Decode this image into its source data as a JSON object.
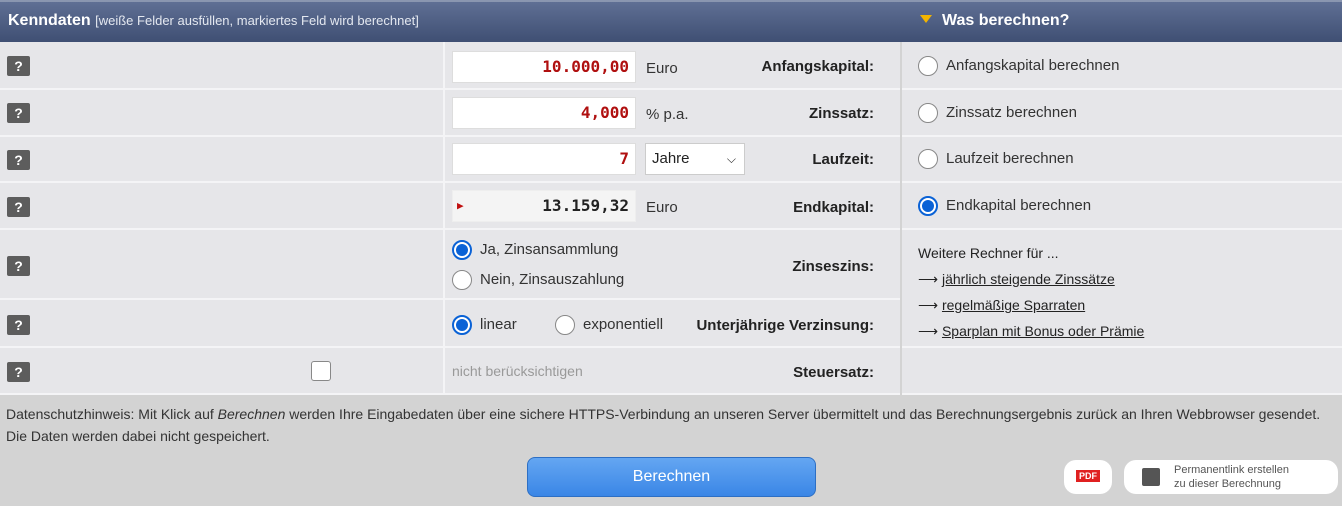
{
  "header": {
    "title": "Kenndaten",
    "subtitle": "[weiße Felder ausfüllen, markiertes Feld wird berechnet]",
    "right_title": "Was berechnen?"
  },
  "help_label": "?",
  "fields": {
    "anfangskapital": {
      "label": "Anfangskapital:",
      "value": "10.000,00",
      "unit": "Euro"
    },
    "zinssatz": {
      "label": "Zinssatz:",
      "value": "4,000",
      "unit": "% p.a."
    },
    "laufzeit": {
      "label": "Laufzeit:",
      "value": "7",
      "unit_select": "Jahre"
    },
    "endkapital": {
      "label": "Endkapital:",
      "value": "13.159,32",
      "unit": "Euro"
    },
    "zinseszins": {
      "label": "Zinseszins:",
      "options": [
        "Ja, Zinsansammlung",
        "Nein, Zinsauszahlung"
      ],
      "selected": 0
    },
    "verzinsung": {
      "label": "Unterjährige Verzinsung:",
      "options": [
        "linear",
        "exponentiell"
      ],
      "selected": 0
    },
    "steuersatz": {
      "label": "Steuersatz:",
      "checked": false,
      "value": "nicht berücksichtigen"
    }
  },
  "calc_options": {
    "items": [
      "Anfangskapital berechnen",
      "Zinssatz berechnen",
      "Laufzeit berechnen",
      "Endkapital berechnen"
    ],
    "selected": 3
  },
  "more": {
    "title": "Weitere Rechner für ...",
    "links": [
      "jährlich steigende Zinssätze",
      "regelmäßige Sparraten",
      "Sparplan mit Bonus oder Prämie"
    ]
  },
  "privacy": {
    "prefix": "Datenschutzhinweis: Mit Klick auf ",
    "em": "Berechnen",
    "suffix": " werden Ihre Eingabedaten über eine sichere HTTPS-Verbindung an unseren Server übermittelt und das Berechnungsergebnis zurück an Ihren Webbrowser gesendet. Die Daten werden dabei nicht gespeichert."
  },
  "buttons": {
    "calculate": "Berechnen",
    "pdf": "PDF",
    "permalink_line1": "Permanentlink erstellen",
    "permalink_line2": "zu dieser Berechnung"
  },
  "colors": {
    "header": "#4a5a7e",
    "accent": "#0a62d6",
    "value": "#b01010",
    "button": "#4a94ec"
  }
}
